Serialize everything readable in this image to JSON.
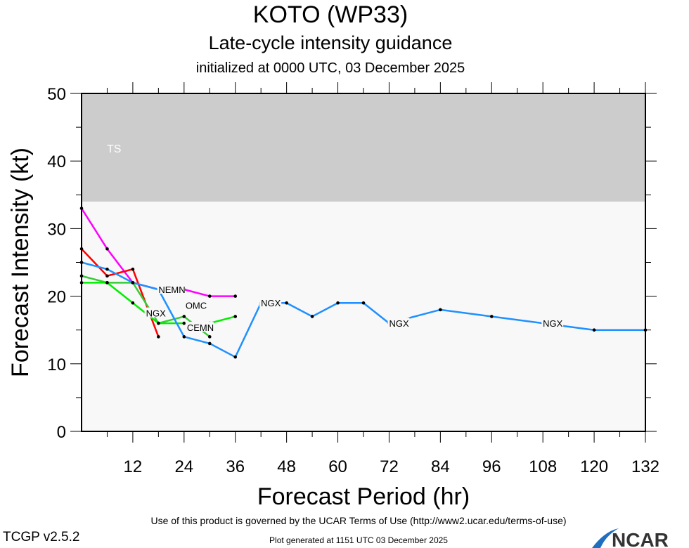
{
  "header": {
    "title": "KOTO (WP33)",
    "subtitle": "Late-cycle intensity guidance",
    "init": "initialized at 0000 UTC, 03 December 2025"
  },
  "footer": {
    "terms": "Use of this product is governed by the UCAR Terms of Use (http://www2.ucar.edu/terms-of-use)",
    "generated": "Plot generated at 1151 UTC   03 December 2025",
    "version": "TCGP v2.5.2",
    "logo": "NCAR"
  },
  "chart_data": {
    "type": "line",
    "xlabel": "Forecast Period (hr)",
    "ylabel": "Forecast Intensity (kt)",
    "xlim": [
      0,
      132
    ],
    "ylim": [
      0,
      50
    ],
    "xticks": [
      12,
      24,
      36,
      48,
      60,
      72,
      84,
      96,
      108,
      120,
      132
    ],
    "yticks": [
      0,
      10,
      20,
      30,
      40,
      50
    ],
    "bands": [
      {
        "label": "TS",
        "from": 34,
        "to": 50,
        "color": "#cccccc"
      }
    ],
    "background": "#f8f8f8",
    "series": [
      {
        "name": "NEMN",
        "color": "#ff00ff",
        "label_at": 18,
        "x": [
          0,
          6,
          12,
          18,
          24,
          30,
          36
        ],
        "y": [
          33,
          27,
          22,
          21,
          21,
          20,
          20
        ]
      },
      {
        "color": "#ff0000",
        "x": [
          0,
          6,
          12,
          18
        ],
        "y": [
          27,
          23,
          24,
          14
        ]
      },
      {
        "name": "OMC",
        "color": "#33cc33",
        "label_at": 24,
        "x": [
          0,
          6,
          12,
          18,
          24,
          30
        ],
        "y": [
          23,
          22,
          22,
          16,
          17,
          14
        ]
      },
      {
        "name": "CEMN",
        "color": "#00ee00",
        "label_at": 24,
        "x": [
          0,
          6,
          12,
          18,
          24,
          30,
          36
        ],
        "y": [
          22,
          22,
          19,
          16,
          16,
          16,
          17
        ]
      },
      {
        "name": "NGX",
        "color": "#1e90ff",
        "label_at": [
          21,
          42,
          72,
          108
        ],
        "x": [
          0,
          6,
          12,
          18,
          24,
          30,
          36,
          42,
          48,
          54,
          60,
          66,
          72,
          84,
          96,
          108,
          120,
          132
        ],
        "y": [
          25,
          24,
          22,
          21,
          14,
          13,
          11,
          19,
          19,
          17,
          19,
          19,
          16,
          18,
          17,
          16,
          15,
          15
        ]
      }
    ]
  }
}
